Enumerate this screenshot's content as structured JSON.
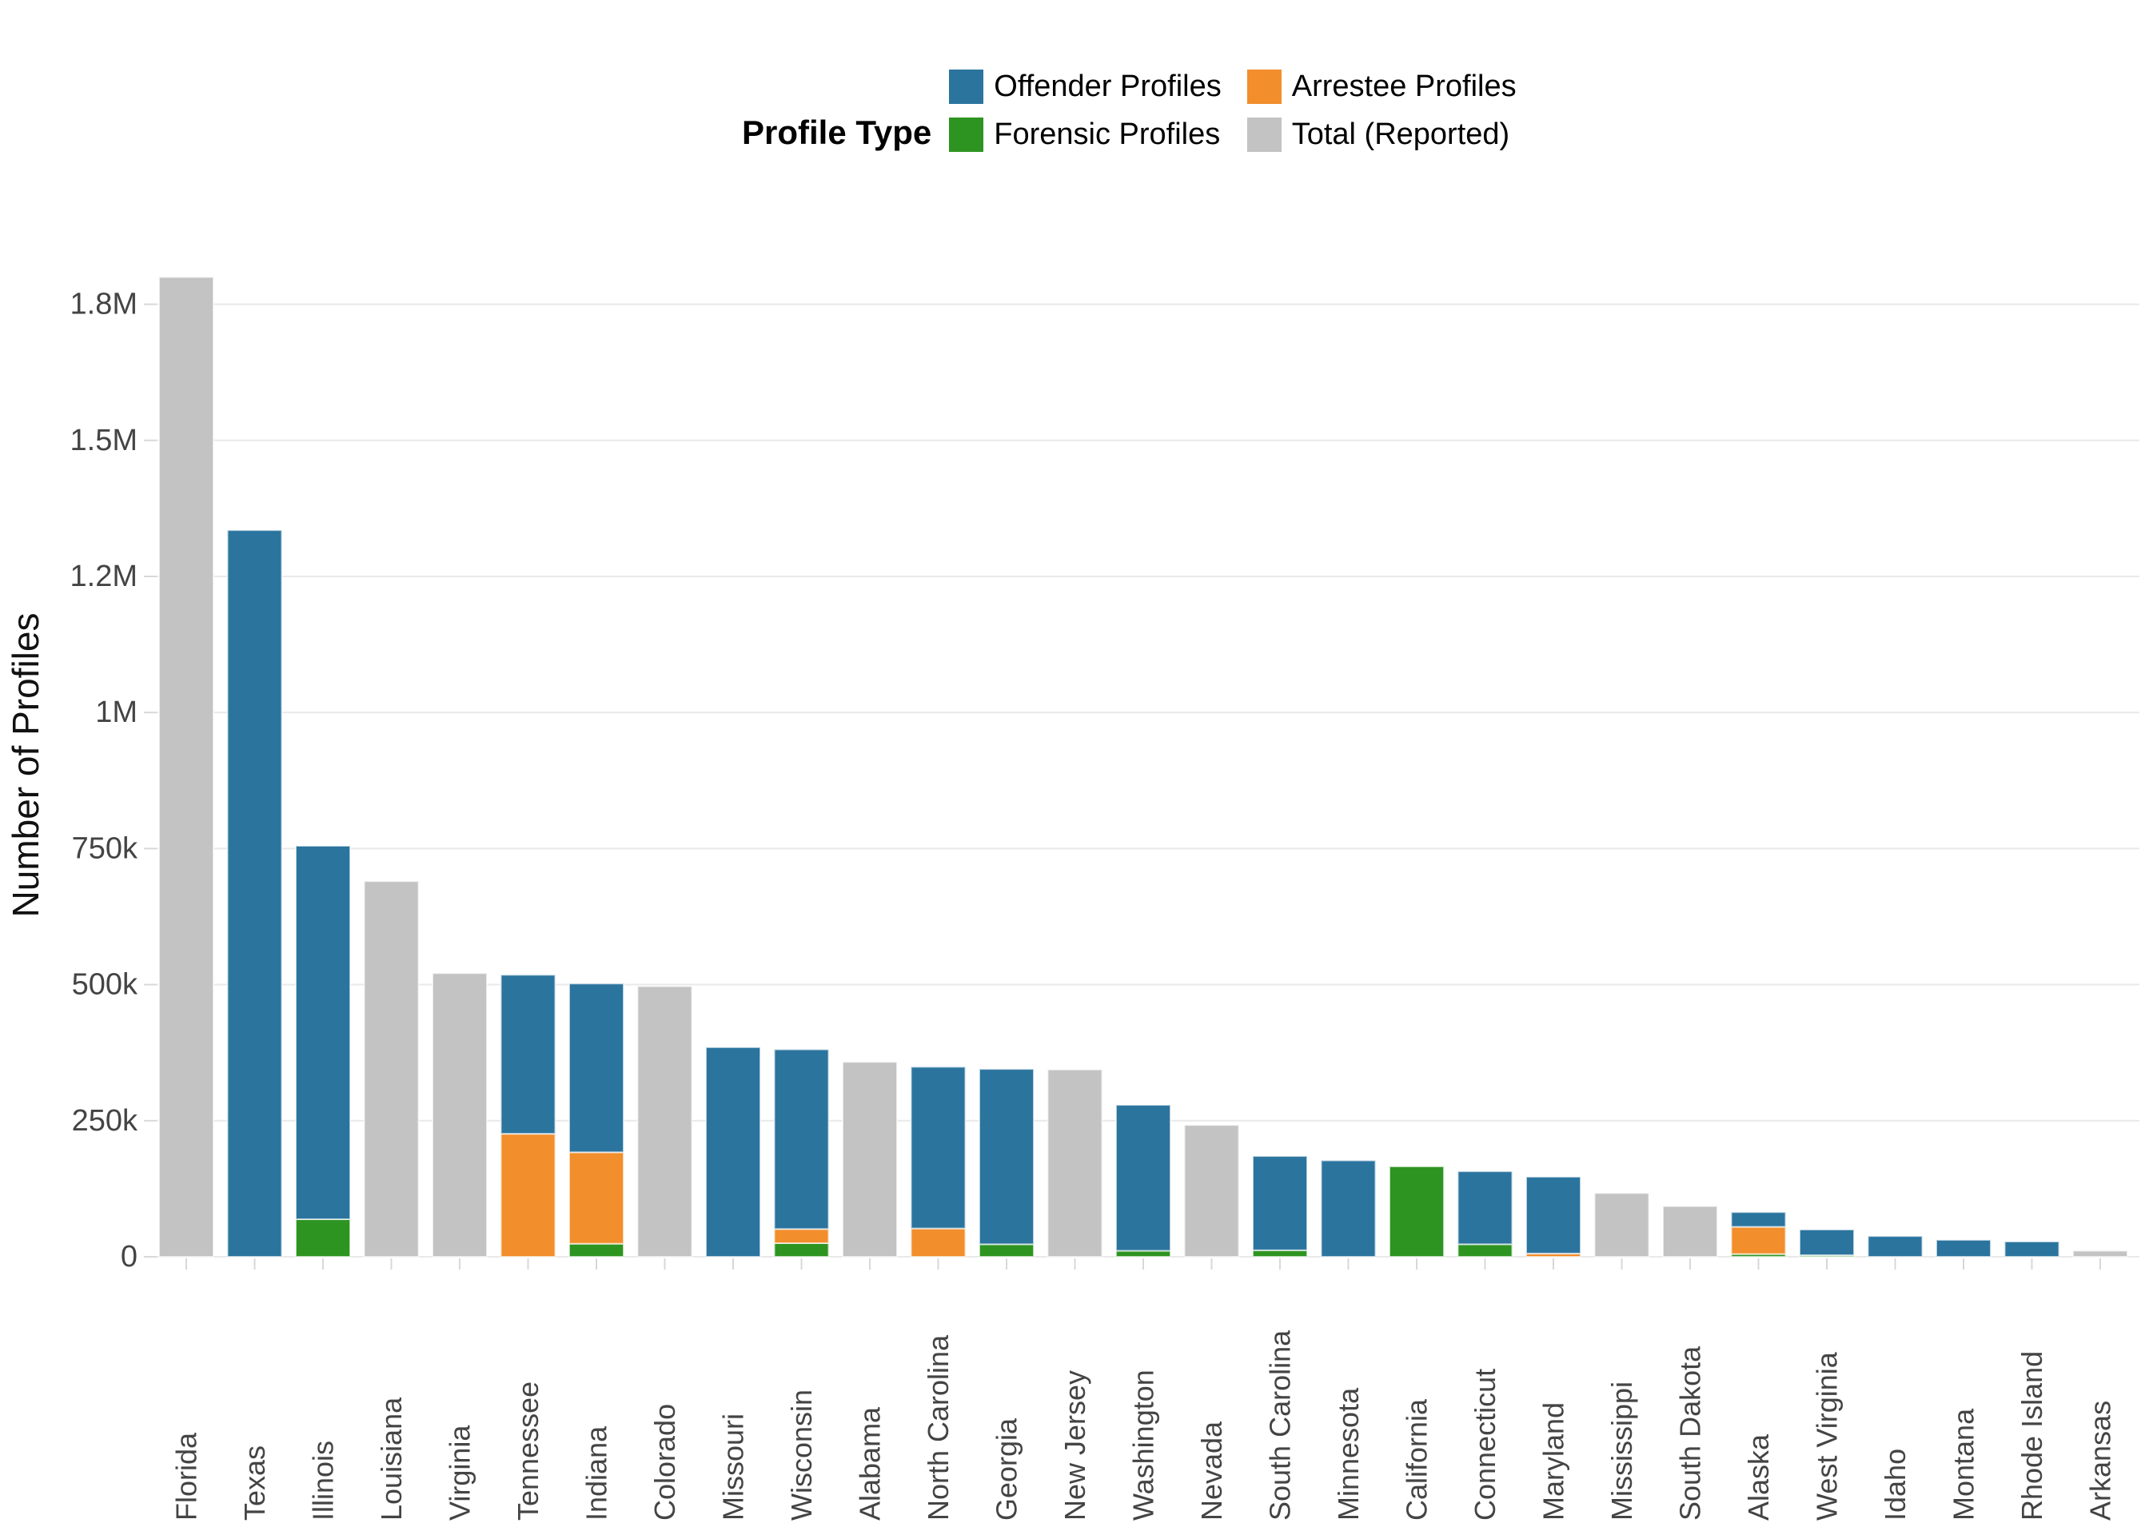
{
  "chart_data": {
    "type": "bar",
    "stacked": true,
    "title": "",
    "legend_title": "Profile Type",
    "ylabel": "Number of Profiles",
    "xlabel": "",
    "legend_position": "top-center",
    "grid": true,
    "categories": [
      "Florida",
      "Texas",
      "Illinois",
      "Louisiana",
      "Virginia",
      "Tennessee",
      "Indiana",
      "Colorado",
      "Missouri",
      "Wisconsin",
      "Alabama",
      "North Carolina",
      "Georgia",
      "New Jersey",
      "Washington",
      "Nevada",
      "South Carolina",
      "Minnesota",
      "California",
      "Connecticut",
      "Maryland",
      "Mississippi",
      "South Dakota",
      "Alaska",
      "West Virginia",
      "Idaho",
      "Montana",
      "Rhode Island",
      "Arkansas"
    ],
    "series": [
      {
        "name": "Offender Profiles",
        "color": "#2b749e",
        "role": "stack",
        "values": [
          0,
          1335000,
          686000,
          0,
          0,
          292000,
          310000,
          0,
          385000,
          330000,
          0,
          297000,
          322000,
          0,
          268000,
          0,
          173000,
          177000,
          0,
          134000,
          141000,
          0,
          0,
          27000,
          47000,
          38000,
          31000,
          28000,
          0
        ]
      },
      {
        "name": "Arrestee Profiles",
        "color": "#f28e2c",
        "role": "stack",
        "values": [
          0,
          0,
          0,
          0,
          0,
          226000,
          168000,
          0,
          0,
          26000,
          0,
          52000,
          0,
          0,
          0,
          0,
          0,
          0,
          0,
          0,
          6000,
          0,
          0,
          50000,
          0,
          0,
          0,
          0,
          0
        ]
      },
      {
        "name": "Forensic Profiles",
        "color": "#2e9421",
        "role": "stack",
        "values": [
          0,
          0,
          69000,
          0,
          0,
          0,
          24000,
          0,
          0,
          25000,
          0,
          0,
          23000,
          0,
          11000,
          0,
          12000,
          0,
          166000,
          23000,
          0,
          0,
          0,
          5000,
          3000,
          0,
          0,
          0,
          0
        ]
      },
      {
        "name": "Total (Reported)",
        "color": "#c3c3c3",
        "role": "standalone",
        "values": [
          1800000,
          0,
          0,
          690000,
          521000,
          0,
          0,
          497000,
          0,
          0,
          358000,
          0,
          0,
          344000,
          0,
          242000,
          0,
          0,
          0,
          0,
          0,
          117000,
          93000,
          0,
          0,
          0,
          0,
          0,
          11000
        ]
      }
    ],
    "stack_order_bottom_to_top": [
      "Forensic Profiles",
      "Arrestee Profiles",
      "Offender Profiles"
    ],
    "y_ticks": {
      "values": [
        0,
        250000,
        500000,
        750000,
        1000000,
        1250000,
        1500000,
        1750000
      ],
      "labels": [
        "0",
        "250k",
        "500k",
        "750k",
        "1M",
        "1.2M",
        "1.5M",
        "1.8M"
      ]
    },
    "ylim": [
      0,
      1850000
    ]
  }
}
